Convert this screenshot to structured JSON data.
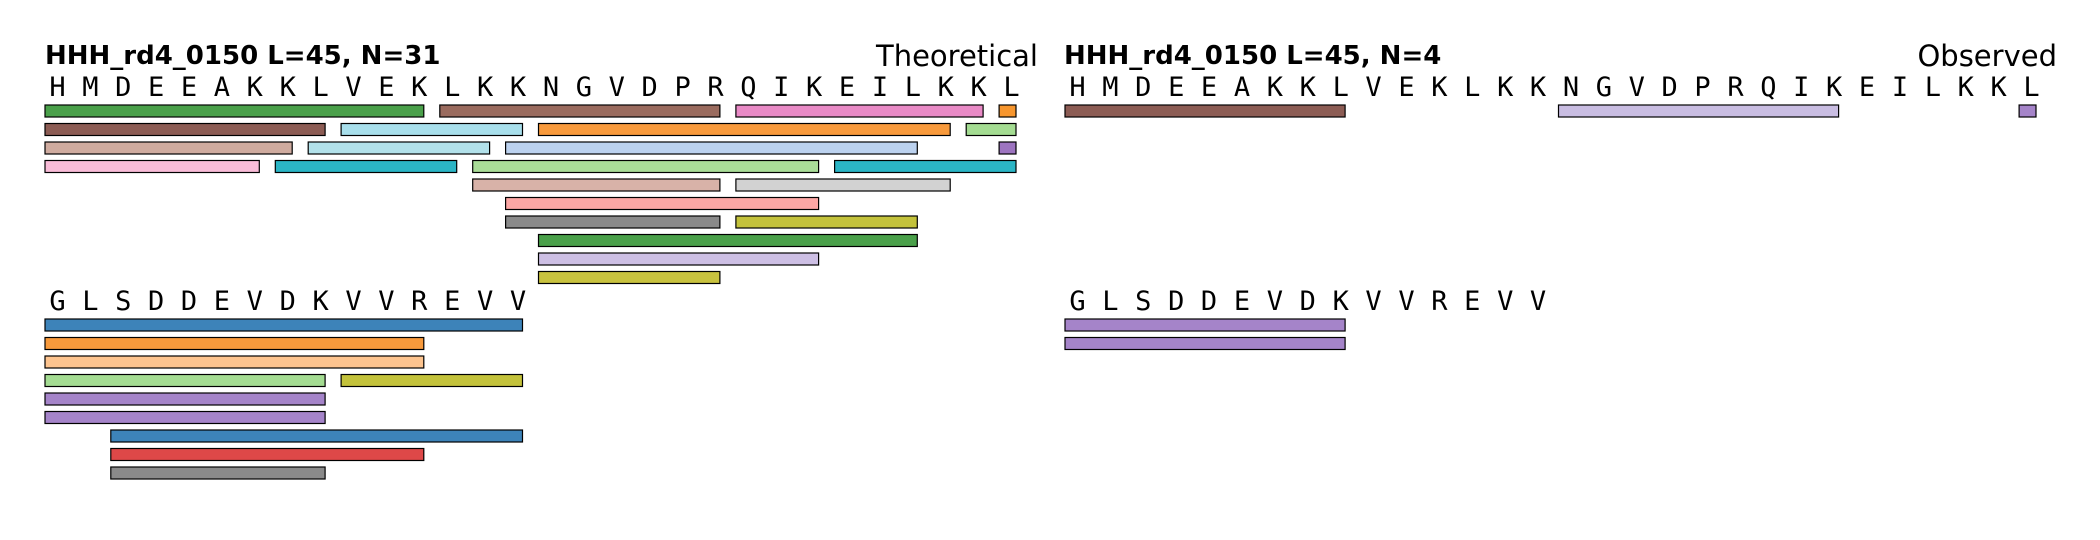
{
  "panels": [
    {
      "id": "theoretical",
      "title": "HHH_rd4_0150  L=45, N=31",
      "mode": "Theoretical",
      "rows": [
        {
          "sequence": "HMDEEAKKLVEKLKKNGVDPRQIKEILKKL",
          "segments": [
            {
              "start": 0,
              "end": 11,
              "color": "#4aa04a"
            },
            {
              "start": 12,
              "end": 20,
              "color": "#9a6b5e"
            },
            {
              "start": 21,
              "end": 28,
              "color": "#e98ac6"
            },
            {
              "start": 29,
              "end": 29,
              "color": "#f7962e"
            },
            {
              "start": 0,
              "end": 8,
              "color": "#8c5c54"
            },
            {
              "start": 9,
              "end": 14,
              "color": "#a8dfeb"
            },
            {
              "start": 15,
              "end": 27,
              "color": "#f89a3c"
            },
            {
              "start": 28,
              "end": 29,
              "color": "#a4dc92"
            },
            {
              "start": 0,
              "end": 7,
              "color": "#cfab9f"
            },
            {
              "start": 8,
              "end": 13,
              "color": "#b2e1ea"
            },
            {
              "start": 14,
              "end": 26,
              "color": "#bcd2ef"
            },
            {
              "start": 29,
              "end": 29,
              "color": "#9d74c0"
            },
            {
              "start": 0,
              "end": 6,
              "color": "#f9bcd8"
            },
            {
              "start": 7,
              "end": 12,
              "color": "#2bb5c5"
            },
            {
              "start": 13,
              "end": 23,
              "color": "#a9dd98"
            },
            {
              "start": 24,
              "end": 29,
              "color": "#2bb5c5"
            },
            {
              "start": 13,
              "end": 20,
              "color": "#d8b2a8"
            },
            {
              "start": 21,
              "end": 27,
              "color": "#d2d2d2"
            },
            {
              "start": 14,
              "end": 23,
              "color": "#fca7a5"
            },
            {
              "start": 14,
              "end": 20,
              "color": "#8a8a8a"
            },
            {
              "start": 21,
              "end": 26,
              "color": "#c3c23b"
            },
            {
              "start": 15,
              "end": 26,
              "color": "#4aa04a"
            },
            {
              "start": 15,
              "end": 23,
              "color": "#cdbfe4"
            },
            {
              "start": 15,
              "end": 20,
              "color": "#c8c23f"
            }
          ]
        },
        {
          "sequence": "GLSDDEVDKVVREVV",
          "segments": [
            {
              "start": 0,
              "end": 14,
              "color": "#3d83b9"
            },
            {
              "start": 0,
              "end": 11,
              "color": "#f89a3c"
            },
            {
              "start": 0,
              "end": 11,
              "color": "#fdc48f"
            },
            {
              "start": 0,
              "end": 8,
              "color": "#a4dc92"
            },
            {
              "start": 9,
              "end": 14,
              "color": "#c3c23b"
            },
            {
              "start": 0,
              "end": 8,
              "color": "#a584c9"
            },
            {
              "start": 0,
              "end": 8,
              "color": "#a584c9"
            },
            {
              "start": 2,
              "end": 14,
              "color": "#3d83b9"
            },
            {
              "start": 2,
              "end": 11,
              "color": "#de4848"
            },
            {
              "start": 2,
              "end": 8,
              "color": "#8a8a8a"
            }
          ]
        }
      ]
    },
    {
      "id": "observed",
      "title": "HHH_rd4_0150  L=45, N=4",
      "mode": "Observed",
      "rows": [
        {
          "sequence": "HMDEEAKKLVEKLKKNGVDPRQIKEILKKL",
          "segments": [
            {
              "start": 0,
              "end": 8,
              "color": "#8c5c54"
            },
            {
              "start": 15,
              "end": 23,
              "color": "#c9bde2"
            },
            {
              "start": 29,
              "end": 29,
              "color": "#a584c9"
            }
          ]
        },
        {
          "sequence": "GLSDDEVDKVVREVV",
          "segments": [
            {
              "start": 0,
              "end": 8,
              "color": "#a584c9"
            },
            {
              "start": 0,
              "end": 8,
              "color": "#a584c9"
            }
          ]
        }
      ]
    }
  ]
}
